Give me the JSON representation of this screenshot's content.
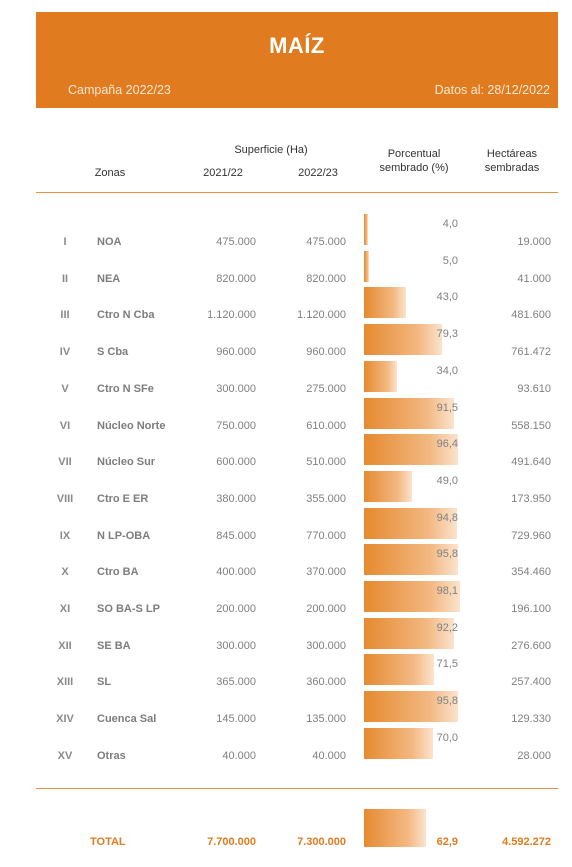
{
  "header": {
    "title": "MAÍZ",
    "campaign": "Campaña 2022/23",
    "date": "Datos al: 28/12/2022"
  },
  "columns": {
    "zonas": "Zonas",
    "superficie": "Superficie (Ha)",
    "y1": "2021/22",
    "y2": "2022/23",
    "porcentual": "Porcentual",
    "sembrado": "sembrado (%)",
    "hectareas": "Hectáreas",
    "sembradas": "sembradas"
  },
  "rows": [
    {
      "num": "I",
      "zone": "NOA",
      "s2122": "475.000",
      "s2223": "475.000",
      "pct": "4,0",
      "pct_value": 4.0,
      "ha": "19.000"
    },
    {
      "num": "II",
      "zone": "NEA",
      "s2122": "820.000",
      "s2223": "820.000",
      "pct": "5,0",
      "pct_value": 5.0,
      "ha": "41.000"
    },
    {
      "num": "III",
      "zone": "Ctro N Cba",
      "s2122": "1.120.000",
      "s2223": "1.120.000",
      "pct": "43,0",
      "pct_value": 43.0,
      "ha": "481.600"
    },
    {
      "num": "IV",
      "zone": "S Cba",
      "s2122": "960.000",
      "s2223": "960.000",
      "pct": "79,3",
      "pct_value": 79.3,
      "ha": "761.472"
    },
    {
      "num": "V",
      "zone": "Ctro N SFe",
      "s2122": "300.000",
      "s2223": "275.000",
      "pct": "34,0",
      "pct_value": 34.0,
      "ha": "93.610"
    },
    {
      "num": "VI",
      "zone": "Núcleo Norte",
      "s2122": "750.000",
      "s2223": "610.000",
      "pct": "91,5",
      "pct_value": 91.5,
      "ha": "558.150"
    },
    {
      "num": "VII",
      "zone": "Núcleo Sur",
      "s2122": "600.000",
      "s2223": "510.000",
      "pct": "96,4",
      "pct_value": 96.4,
      "ha": "491.640"
    },
    {
      "num": "VIII",
      "zone": "Ctro E ER",
      "s2122": "380.000",
      "s2223": "355.000",
      "pct": "49,0",
      "pct_value": 49.0,
      "ha": "173.950"
    },
    {
      "num": "IX",
      "zone": "N LP-OBA",
      "s2122": "845.000",
      "s2223": "770.000",
      "pct": "94,8",
      "pct_value": 94.8,
      "ha": "729.960"
    },
    {
      "num": "X",
      "zone": "Ctro BA",
      "s2122": "400.000",
      "s2223": "370.000",
      "pct": "95,8",
      "pct_value": 95.8,
      "ha": "354.460"
    },
    {
      "num": "XI",
      "zone": "SO BA-S LP",
      "s2122": "200.000",
      "s2223": "200.000",
      "pct": "98,1",
      "pct_value": 98.1,
      "ha": "196.100"
    },
    {
      "num": "XII",
      "zone": "SE BA",
      "s2122": "300.000",
      "s2223": "300.000",
      "pct": "92,2",
      "pct_value": 92.2,
      "ha": "276.600"
    },
    {
      "num": "XIII",
      "zone": "SL",
      "s2122": "365.000",
      "s2223": "360.000",
      "pct": "71,5",
      "pct_value": 71.5,
      "ha": "257.400"
    },
    {
      "num": "XIV",
      "zone": "Cuenca Sal",
      "s2122": "145.000",
      "s2223": "135.000",
      "pct": "95,8",
      "pct_value": 95.8,
      "ha": "129.330"
    },
    {
      "num": "XV",
      "zone": "Otras",
      "s2122": "40.000",
      "s2223": "40.000",
      "pct": "70,0",
      "pct_value": 70.0,
      "ha": "28.000"
    }
  ],
  "total": {
    "label": "TOTAL",
    "s2122": "7.700.000",
    "s2223": "7.300.000",
    "pct": "62,9",
    "pct_value": 62.9,
    "ha": "4.592.272"
  },
  "colors": {
    "accent": "#e07b1f",
    "bar_start": "#e58a2f",
    "bar_end": "#fbe3cd"
  }
}
